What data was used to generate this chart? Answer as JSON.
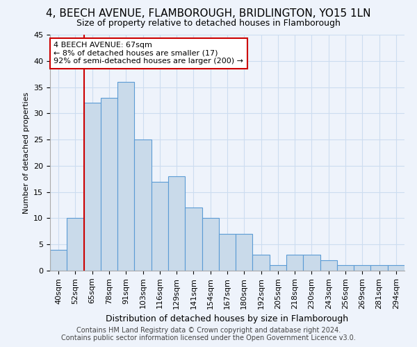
{
  "title_line1": "4, BEECH AVENUE, FLAMBOROUGH, BRIDLINGTON, YO15 1LN",
  "title_line2": "Size of property relative to detached houses in Flamborough",
  "xlabel": "Distribution of detached houses by size in Flamborough",
  "ylabel": "Number of detached properties",
  "footer_line1": "Contains HM Land Registry data © Crown copyright and database right 2024.",
  "footer_line2": "Contains public sector information licensed under the Open Government Licence v3.0.",
  "categories": [
    "40sqm",
    "52sqm",
    "65sqm",
    "78sqm",
    "91sqm",
    "103sqm",
    "116sqm",
    "129sqm",
    "141sqm",
    "154sqm",
    "167sqm",
    "180sqm",
    "192sqm",
    "205sqm",
    "218sqm",
    "230sqm",
    "243sqm",
    "256sqm",
    "269sqm",
    "281sqm",
    "294sqm"
  ],
  "values": [
    4,
    10,
    32,
    33,
    36,
    25,
    17,
    18,
    12,
    10,
    7,
    7,
    3,
    1,
    3,
    3,
    2,
    1,
    1,
    1,
    1
  ],
  "bar_color": "#c9daea",
  "bar_edge_color": "#5b9bd5",
  "grid_color": "#ccddf0",
  "background_color": "#eef3fb",
  "vline_color": "#cc0000",
  "vline_index": 2,
  "annotation_line1": "4 BEECH AVENUE: 67sqm",
  "annotation_line2": "← 8% of detached houses are smaller (17)",
  "annotation_line3": "92% of semi-detached houses are larger (200) →",
  "annotation_box_color": "#ffffff",
  "annotation_box_edge": "#cc0000",
  "ylim": [
    0,
    45
  ],
  "yticks": [
    0,
    5,
    10,
    15,
    20,
    25,
    30,
    35,
    40,
    45
  ],
  "title1_fontsize": 11,
  "title2_fontsize": 9,
  "ylabel_fontsize": 8,
  "xlabel_fontsize": 9,
  "tick_fontsize": 8,
  "footer_fontsize": 7
}
